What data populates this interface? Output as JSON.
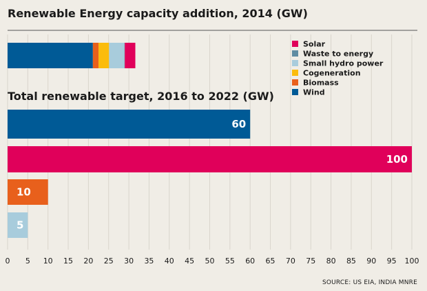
{
  "source": "SOURCE: US EIA, INDIA MNRE",
  "chart_data": [
    {
      "type": "bar",
      "orientation": "horizontal",
      "stacked": true,
      "title": "Renewable Energy capacity addition, 2014 (GW)",
      "categories": [
        ""
      ],
      "series": [
        {
          "name": "Wind",
          "values": [
            21.1
          ],
          "color": "#005a96"
        },
        {
          "name": "Biomass",
          "values": [
            1.4
          ],
          "color": "#e8601c"
        },
        {
          "name": "Cogeneration",
          "values": [
            2.6
          ],
          "color": "#fbbc0c"
        },
        {
          "name": "Small hydro power",
          "values": [
            3.8
          ],
          "color": "#a8ccdc"
        },
        {
          "name": "Waste to energy",
          "values": [
            0.1
          ],
          "color": "#5f8ca2"
        },
        {
          "name": "Solar",
          "values": [
            2.6
          ],
          "color": "#e0005a"
        }
      ],
      "legend": {
        "placement": "right",
        "order": [
          "Solar",
          "Waste to energy",
          "Small hydro power",
          "Cogeneration",
          "Biomass",
          "Wind"
        ]
      },
      "xlim": [
        0,
        100
      ]
    },
    {
      "type": "bar",
      "orientation": "horizontal",
      "title": "Total renewable target, 2016 to 2022 (GW)",
      "categories": [
        "Wind",
        "Solar",
        "Biomass",
        "Small hydro power"
      ],
      "values": [
        60,
        100,
        10,
        5
      ],
      "colors": [
        "#005a96",
        "#e0005a",
        "#e8601c",
        "#a8ccdc"
      ],
      "data_labels": [
        "60",
        "100",
        "10",
        "5"
      ],
      "xlim": [
        0,
        100
      ],
      "xticks": [
        0,
        5,
        10,
        15,
        20,
        25,
        30,
        35,
        40,
        45,
        50,
        55,
        60,
        65,
        70,
        75,
        80,
        85,
        90,
        95,
        100
      ],
      "grid": true
    }
  ]
}
